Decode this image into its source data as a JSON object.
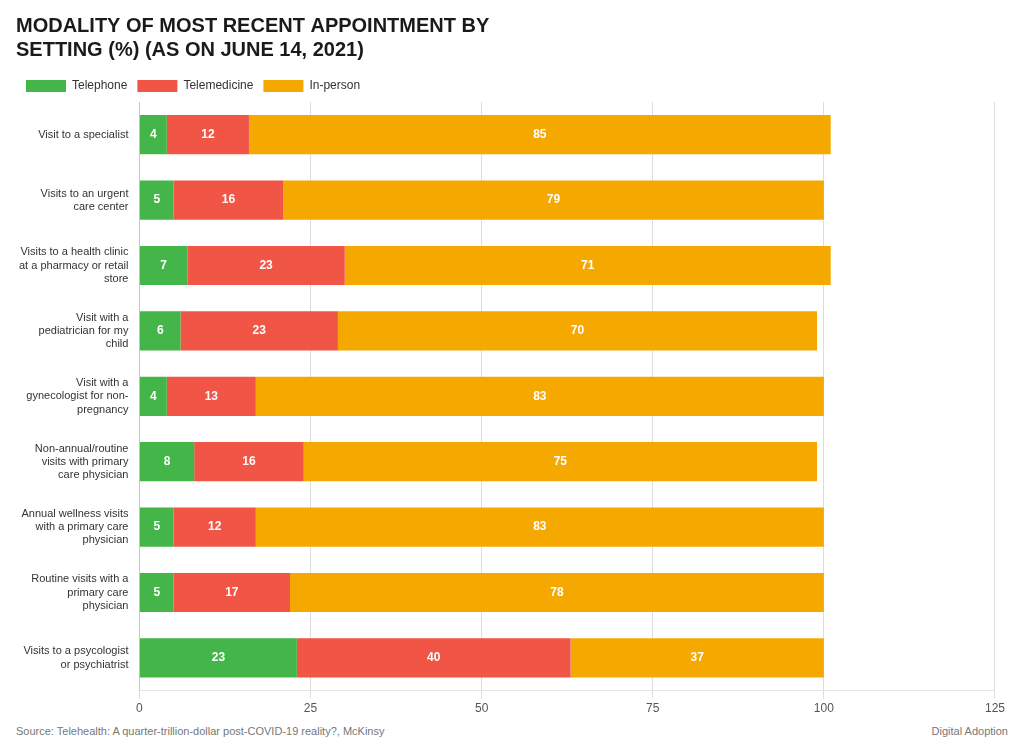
{
  "chart_data": {
    "type": "bar",
    "orientation": "horizontal",
    "stacked": true,
    "title": "MODALITY OF MOST RECENT APPOINTMENT BY\nSETTING (%) (AS ON JUNE 14, 2021)",
    "annotations": [
      "Source: Telehealth: A quarter-trillion-dollar post-COVID-19 reality?, McKinsy",
      "Digital Adoption"
    ],
    "categories": [
      "Visit to a specialist",
      "Visits to an urgent\ncare center",
      "Visits to a health clinic\nat a pharmacy or retail\nstore",
      "Visit with a\npediatrician for my\nchild",
      "Visit with a\ngynecologist for non-\npregnancy",
      "Non-annual/routine\nvisits with primary\ncare physician",
      "Annual wellness visits\nwith a primary care\nphysician",
      "Routine visits with a\nprimary care\nphysician",
      "Visits to a psycologist\nor psychiatrist"
    ],
    "series": [
      {
        "name": "Telephone",
        "color": "#44b649",
        "values": [
          4,
          5,
          7,
          6,
          4,
          8,
          5,
          5,
          23
        ]
      },
      {
        "name": "Telemedicine",
        "color": "#f05545",
        "values": [
          12,
          16,
          23,
          23,
          13,
          16,
          12,
          17,
          40
        ]
      },
      {
        "name": "In-person",
        "color": "#f5a800",
        "values": [
          85,
          79,
          71,
          70,
          83,
          75,
          83,
          78,
          37
        ]
      }
    ],
    "xlim": [
      0,
      125
    ],
    "xticks": [
      0,
      25,
      50,
      75,
      100,
      125
    ],
    "grid": true,
    "legend": "top",
    "data_labels": true
  }
}
